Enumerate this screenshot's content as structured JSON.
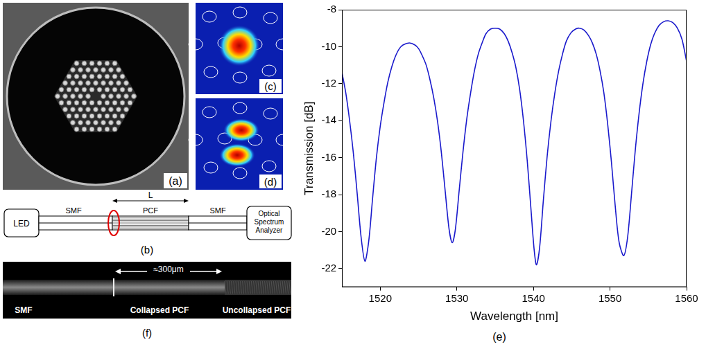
{
  "panels": {
    "a": {
      "label": "(a)"
    },
    "c": {
      "label": "(c)"
    },
    "d": {
      "label": "(d)"
    },
    "b": {
      "label": "(b)",
      "source": "LED",
      "fiber_left": "SMF",
      "length": "L",
      "fiber_middle": "PCF",
      "fiber_right": "SMF",
      "detector": "Optical Spectrum Analyzer"
    },
    "f": {
      "label": "(f)",
      "length": "≈300μm",
      "left": "SMF",
      "middle": "Collapsed PCF",
      "right": "Uncollapsed PCF"
    },
    "e": {
      "label": "(e)"
    }
  },
  "chart_data": {
    "type": "line",
    "x_label": "Wavelength [nm]",
    "y_label": "Transmission [dB]",
    "color": "#1a1acc",
    "grid": false,
    "xlim": [
      1515,
      1560
    ],
    "xticks": [
      1520,
      1530,
      1540,
      1550,
      1560
    ],
    "ylim": [
      -23,
      -8
    ],
    "yticks": [
      -22,
      -20,
      -18,
      -16,
      -14,
      -12,
      -10,
      -8
    ],
    "x": [
      1515,
      1515.5,
      1516,
      1516.5,
      1517,
      1517.5,
      1518,
      1518.5,
      1519,
      1519.5,
      1520,
      1520.5,
      1521,
      1521.5,
      1522,
      1522.5,
      1523,
      1523.8,
      1524.5,
      1525,
      1525.5,
      1526,
      1526.5,
      1527,
      1527.5,
      1528,
      1528.5,
      1529,
      1529.4,
      1529.8,
      1530.3,
      1530.8,
      1531.3,
      1531.8,
      1532.3,
      1532.8,
      1533.3,
      1533.8,
      1534.4,
      1535,
      1535.6,
      1536.2,
      1536.7,
      1537.2,
      1537.7,
      1538.2,
      1538.7,
      1539.2,
      1539.7,
      1540.1,
      1540.4,
      1540.8,
      1541.3,
      1541.8,
      1542.3,
      1542.8,
      1543.3,
      1543.8,
      1544.3,
      1544.9,
      1545.5,
      1546,
      1546.6,
      1547.2,
      1547.7,
      1548.2,
      1548.7,
      1549.2,
      1549.7,
      1550.2,
      1550.7,
      1551.2,
      1551.8,
      1552.3,
      1552.8,
      1553.3,
      1553.8,
      1554.3,
      1554.8,
      1555.3,
      1555.8,
      1556.4,
      1557,
      1557.6,
      1558.2,
      1558.8,
      1559.4,
      1560
    ],
    "values": [
      -11.4,
      -12.5,
      -14.0,
      -15.8,
      -18.0,
      -20.3,
      -21.6,
      -20.5,
      -18.2,
      -16.0,
      -14.3,
      -13.0,
      -11.9,
      -11.1,
      -10.5,
      -10.1,
      -9.9,
      -9.8,
      -9.9,
      -10.1,
      -10.5,
      -11.0,
      -11.8,
      -12.8,
      -14.1,
      -15.8,
      -17.9,
      -19.9,
      -20.6,
      -19.9,
      -17.8,
      -15.7,
      -13.9,
      -12.5,
      -11.3,
      -10.4,
      -9.8,
      -9.3,
      -9.05,
      -9.0,
      -9.05,
      -9.3,
      -9.7,
      -10.3,
      -11.1,
      -12.3,
      -14.0,
      -16.2,
      -18.9,
      -21.0,
      -21.8,
      -20.9,
      -18.3,
      -15.9,
      -14.0,
      -12.5,
      -11.3,
      -10.4,
      -9.7,
      -9.25,
      -9.05,
      -9.0,
      -9.1,
      -9.4,
      -9.8,
      -10.4,
      -11.3,
      -12.5,
      -14.2,
      -16.3,
      -18.7,
      -20.6,
      -21.3,
      -20.3,
      -18.0,
      -15.6,
      -13.6,
      -12.0,
      -10.8,
      -9.9,
      -9.3,
      -8.85,
      -8.65,
      -8.6,
      -8.7,
      -9.0,
      -9.6,
      -10.8
    ]
  }
}
